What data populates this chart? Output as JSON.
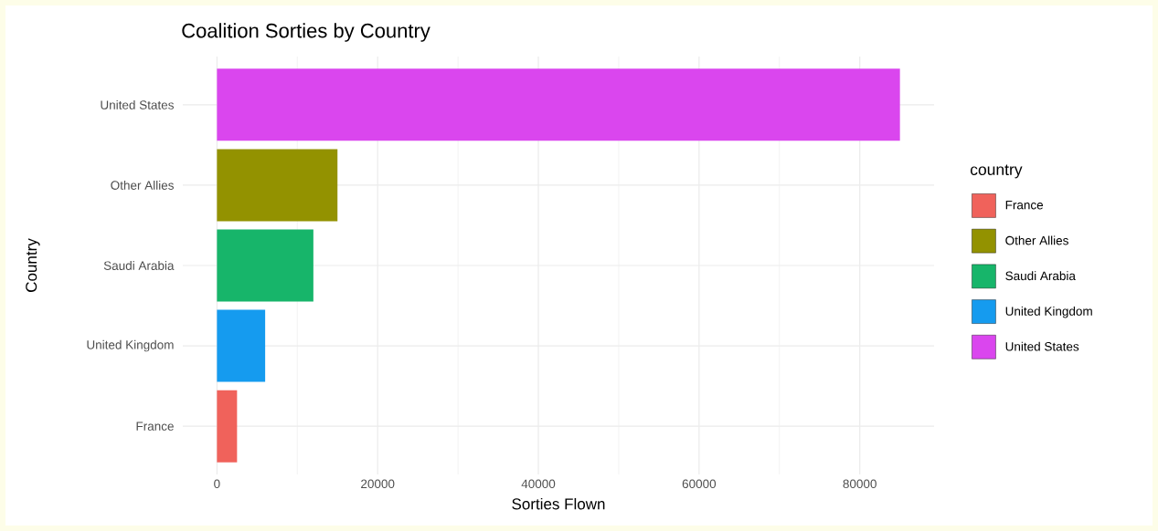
{
  "chart_data": {
    "type": "bar",
    "orientation": "horizontal",
    "title": "Coalition Sorties by Country",
    "xlabel": "Sorties Flown",
    "ylabel": "Country",
    "legend_title": "country",
    "categories": [
      "United States",
      "Other Allies",
      "Saudi Arabia",
      "United Kingdom",
      "France"
    ],
    "series": [
      {
        "name": "France",
        "color": "#f0625b",
        "values": [
          null,
          null,
          null,
          null,
          2500
        ]
      },
      {
        "name": "Other Allies",
        "color": "#939200",
        "values": [
          null,
          15000,
          null,
          null,
          null
        ]
      },
      {
        "name": "Saudi Arabia",
        "color": "#17b56a",
        "values": [
          null,
          null,
          12000,
          null,
          null
        ]
      },
      {
        "name": "United Kingdom",
        "color": "#159bef",
        "values": [
          null,
          null,
          null,
          6000,
          null
        ]
      },
      {
        "name": "United States",
        "color": "#da46ee",
        "values": [
          85000,
          null,
          null,
          null,
          null
        ]
      }
    ],
    "xlim": [
      -4250,
      89250
    ],
    "xticks": [
      0,
      20000,
      40000,
      60000,
      80000
    ],
    "grid": true,
    "legend": "right"
  }
}
